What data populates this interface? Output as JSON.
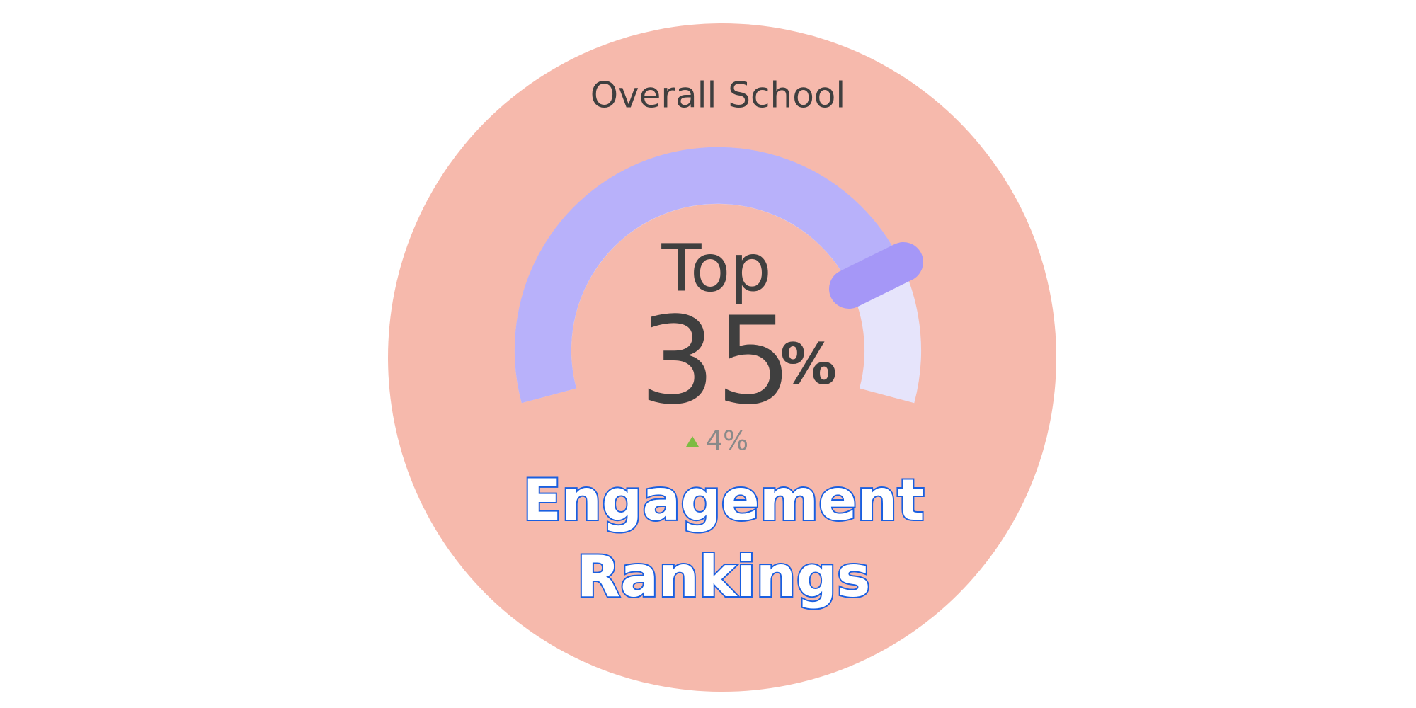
{
  "title": "Overall School",
  "gauge": {
    "prefix": "Top",
    "value": "35",
    "unit": "%",
    "change": "4%"
  },
  "label": {
    "line1": "Engagement",
    "line2": "Rankings"
  }
}
